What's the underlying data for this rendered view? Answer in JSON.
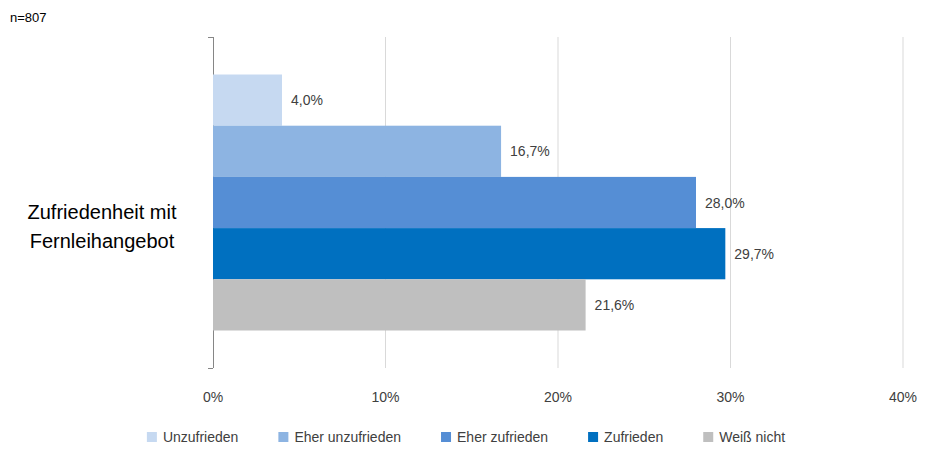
{
  "chart_data": {
    "type": "bar",
    "orientation": "horizontal",
    "annotation": "n=807",
    "categories": [
      "Zufriedenheit mit Fernleihangebot"
    ],
    "series": [
      {
        "name": "Unzufrieden",
        "color": "#c6d9f1",
        "values": [
          4.0
        ],
        "value_labels": [
          "4,0%"
        ]
      },
      {
        "name": "Eher unzufrieden",
        "color": "#8db4e2",
        "values": [
          16.7
        ],
        "value_labels": [
          "16,7%"
        ]
      },
      {
        "name": "Eher zufrieden",
        "color": "#558ed5",
        "values": [
          28.0
        ],
        "value_labels": [
          "28,0%"
        ]
      },
      {
        "name": "Zufrieden",
        "color": "#0070c0",
        "values": [
          29.7
        ],
        "value_labels": [
          "29,7%"
        ]
      },
      {
        "name": "Weiß nicht",
        "color": "#bfbfbf",
        "values": [
          21.6
        ],
        "value_labels": [
          "21,6%"
        ]
      }
    ],
    "xlim": [
      0,
      40
    ],
    "xticks": [
      {
        "value": 0,
        "label": "0%"
      },
      {
        "value": 10,
        "label": "10%"
      },
      {
        "value": 20,
        "label": "20%"
      },
      {
        "value": 30,
        "label": "30%"
      },
      {
        "value": 40,
        "label": "40%"
      }
    ],
    "grid": true,
    "legend": "bottom",
    "data_labels": true
  }
}
